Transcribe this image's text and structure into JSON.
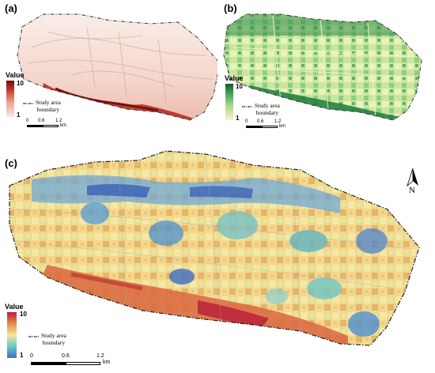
{
  "panels": [
    {
      "label": "(a)",
      "legend": {
        "title": "Value",
        "max": "10",
        "min": "1",
        "colors": [
          "#f7e9e4",
          "#e8a68e",
          "#c0392b",
          "#6b0f0a"
        ]
      },
      "boundary_label": "Study area boundary",
      "boundary_line1": "Study area",
      "boundary_line2": "boundary",
      "scalebar": {
        "ticks": [
          "0",
          "0.6",
          "1.2"
        ],
        "unit": "km"
      }
    },
    {
      "label": "(b)",
      "legend": {
        "title": "Value",
        "max": "10",
        "min": "1",
        "colors": [
          "#f6f5c7",
          "#a8d98c",
          "#3e9e57",
          "#0b5a2b"
        ]
      },
      "boundary_line1": "Study area",
      "boundary_line2": "boundary",
      "scalebar": {
        "ticks": [
          "0",
          "0.6",
          "1.2"
        ],
        "unit": "km"
      }
    },
    {
      "label": "(c)",
      "legend": {
        "title": "Value",
        "max": "10",
        "min": "1",
        "colors": [
          "#3b6fc5",
          "#6fc4c6",
          "#f3e7a0",
          "#e58a4a",
          "#b81d3a"
        ]
      },
      "boundary_line1": "Study area",
      "boundary_line2": "boundary",
      "scalebar": {
        "ticks": [
          "0",
          "0.6",
          "1.2"
        ],
        "unit": "km"
      }
    }
  ],
  "north_arrow": "N"
}
